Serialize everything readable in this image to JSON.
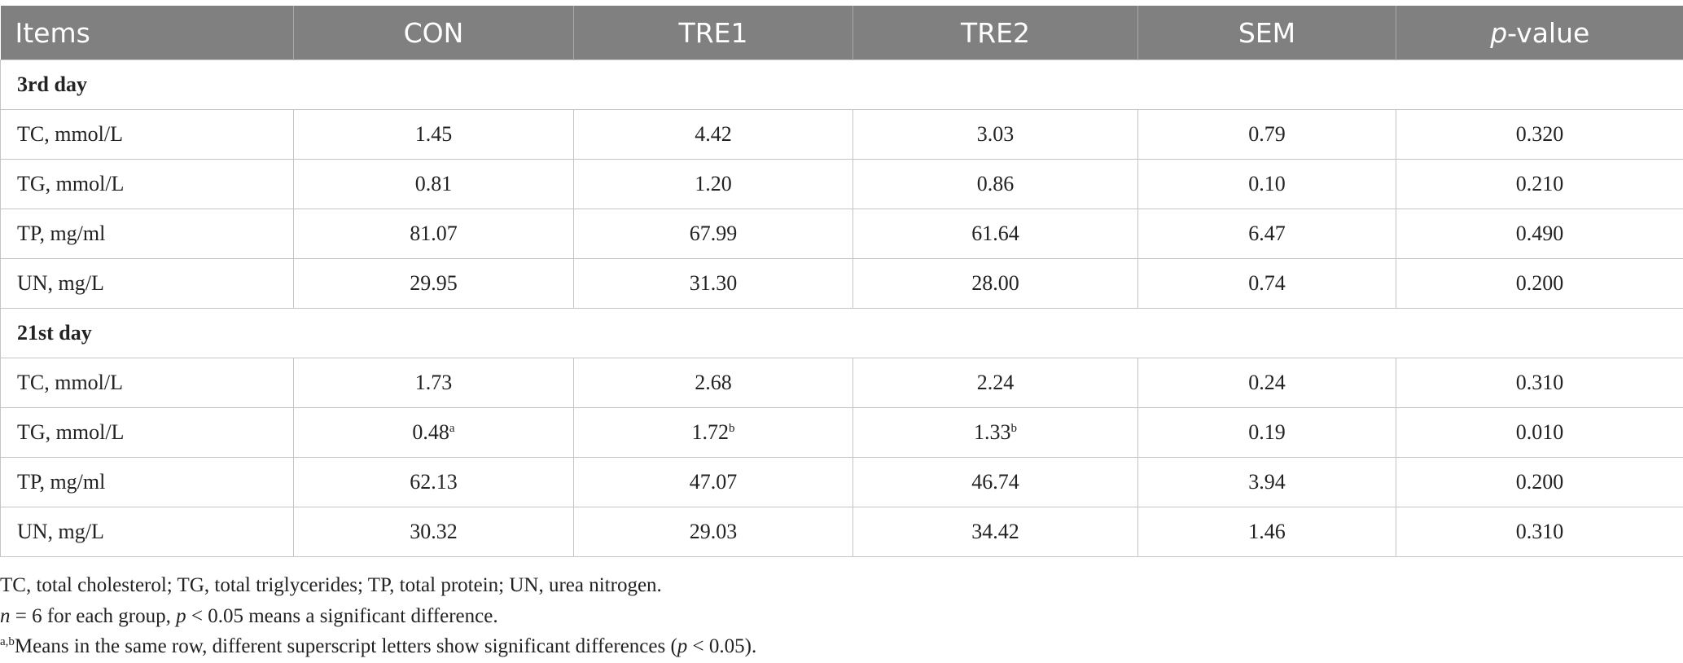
{
  "table": {
    "header": [
      "Items",
      "CON",
      "TRE1",
      "TRE2",
      "SEM",
      {
        "italic": "p",
        "text": "-value"
      }
    ],
    "sections": [
      {
        "title": "3rd day",
        "rows": [
          [
            "TC, mmol/L",
            "1.45",
            "4.42",
            "3.03",
            "0.79",
            "0.320"
          ],
          [
            "TG, mmol/L",
            "0.81",
            "1.20",
            "0.86",
            "0.10",
            "0.210"
          ],
          [
            "TP, mg/ml",
            "81.07",
            "67.99",
            "61.64",
            "6.47",
            "0.490"
          ],
          [
            "UN, mg/L",
            "29.95",
            "31.30",
            "28.00",
            "0.74",
            "0.200"
          ]
        ]
      },
      {
        "title": "21st day",
        "rows": [
          [
            "TC, mmol/L",
            "1.73",
            "2.68",
            "2.24",
            "0.24",
            "0.310"
          ],
          [
            "TG, mmol/L",
            {
              "text": "0.48",
              "sup": "a"
            },
            {
              "text": "1.72",
              "sup": "b"
            },
            {
              "text": "1.33",
              "sup": "b"
            },
            "0.19",
            "0.010"
          ],
          [
            "TP, mg/ml",
            "62.13",
            "47.07",
            "46.74",
            "3.94",
            "0.200"
          ],
          [
            "UN, mg/L",
            "30.32",
            "29.03",
            "34.42",
            "1.46",
            "0.310"
          ]
        ]
      }
    ]
  },
  "footnotes": [
    [
      {
        "text": "TC, total cholesterol; TG, total triglycerides; TP, total protein; UN, urea nitrogen."
      }
    ],
    [
      {
        "text": "n",
        "style": "italic"
      },
      {
        "text": " = 6 for each group, "
      },
      {
        "text": "p",
        "style": "italic"
      },
      {
        "text": " < 0.05 means a significant difference."
      }
    ],
    [
      {
        "text": "a,b",
        "style": "sup"
      },
      {
        "text": "Means in the same row, different superscript letters show significant differences ("
      },
      {
        "text": "p",
        "style": "italic"
      },
      {
        "text": " < 0.05)."
      }
    ]
  ]
}
